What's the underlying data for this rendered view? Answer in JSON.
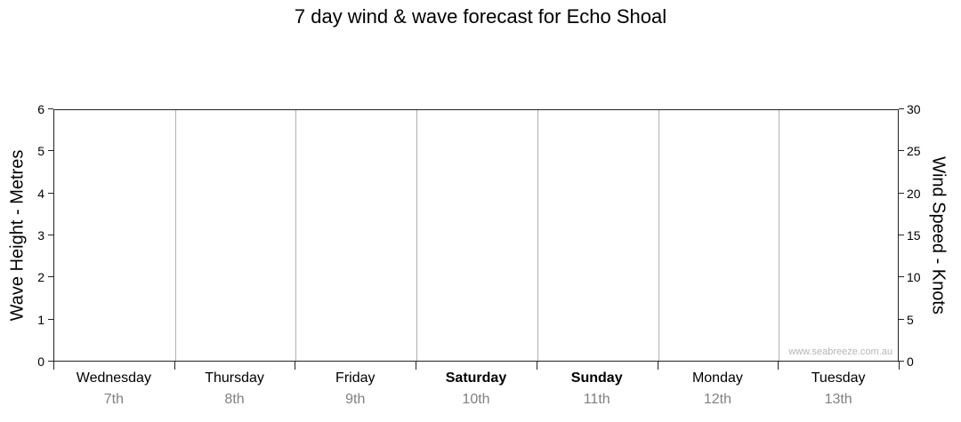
{
  "title": "7 day wind & wave forecast for Echo Shoal",
  "watermark": "www.seabreeze.com.au",
  "chart_data": {
    "type": "line",
    "title": "7 day wind & wave forecast for Echo Shoal",
    "series": [],
    "left_axis": {
      "label": "Wave Height - Metres",
      "min": 0,
      "max": 6,
      "ticks": [
        0,
        1,
        2,
        3,
        4,
        5,
        6
      ]
    },
    "right_axis": {
      "label": "Wind Speed - Knots",
      "min": 0,
      "max": 30,
      "ticks": [
        0,
        5,
        10,
        15,
        20,
        25,
        30
      ]
    },
    "x_axis": {
      "days": [
        {
          "name": "Wednesday",
          "date": "7th",
          "weekend": false
        },
        {
          "name": "Thursday",
          "date": "8th",
          "weekend": false
        },
        {
          "name": "Friday",
          "date": "9th",
          "weekend": false
        },
        {
          "name": "Saturday",
          "date": "10th",
          "weekend": true
        },
        {
          "name": "Sunday",
          "date": "11th",
          "weekend": true
        },
        {
          "name": "Monday",
          "date": "12th",
          "weekend": false
        },
        {
          "name": "Tuesday",
          "date": "13th",
          "weekend": false
        }
      ]
    },
    "grid": "vertical day-boundary separators only, plot box on all four sides",
    "legend": "none"
  }
}
